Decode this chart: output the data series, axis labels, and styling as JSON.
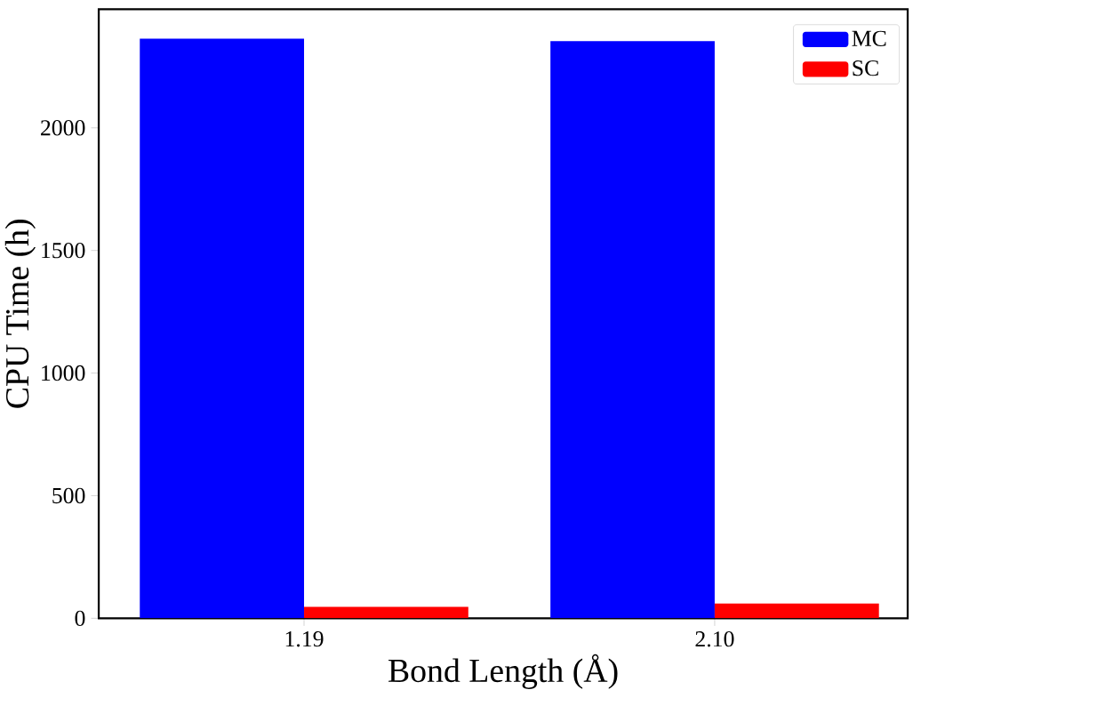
{
  "chart_data": {
    "type": "bar",
    "xlabel": "Bond Length (Å)",
    "ylabel": "CPU Time (h)",
    "categories": [
      "1.19",
      "2.10"
    ],
    "series": [
      {
        "name": "MC",
        "color": "#0000ff",
        "values": [
          2364,
          2354
        ]
      },
      {
        "name": "SC",
        "color": "#ff0000",
        "values": [
          47,
          60
        ]
      }
    ],
    "ylim": [
      0,
      2484
    ],
    "yticks": [
      0,
      500,
      1000,
      1500,
      2000
    ],
    "grid": false,
    "legend": "top right"
  }
}
